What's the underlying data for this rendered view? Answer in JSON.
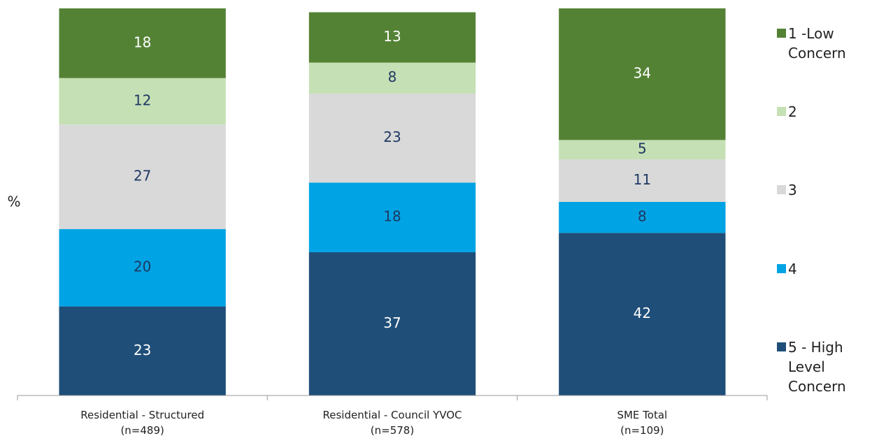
{
  "chart_data": {
    "type": "stacked_bar",
    "y_label": "%",
    "categories": [
      "Residential - Structured\n(n=489)",
      "Residential - Council YVOC\n(n=578)",
      "SME Total\n(n=109)"
    ],
    "ylim": [
      0,
      100
    ],
    "series": [
      {
        "name": "5 - High Level Concern",
        "color": "#1f4e79",
        "label_color": "#ffffff",
        "values": [
          23,
          37,
          42
        ]
      },
      {
        "name": "4",
        "color": "#00a3e3",
        "label_color": "#1f3864",
        "values": [
          20,
          18,
          8
        ]
      },
      {
        "name": "3",
        "color": "#d9d9d9",
        "label_color": "#1f3864",
        "values": [
          27,
          23,
          11
        ]
      },
      {
        "name": "2",
        "color": "#c5e0b4",
        "label_color": "#1f3864",
        "values": [
          12,
          8,
          5
        ]
      },
      {
        "name": "1 -Low Concern",
        "color": "#548235",
        "label_color": "#ffffff",
        "values": [
          18,
          13,
          34
        ]
      }
    ]
  }
}
